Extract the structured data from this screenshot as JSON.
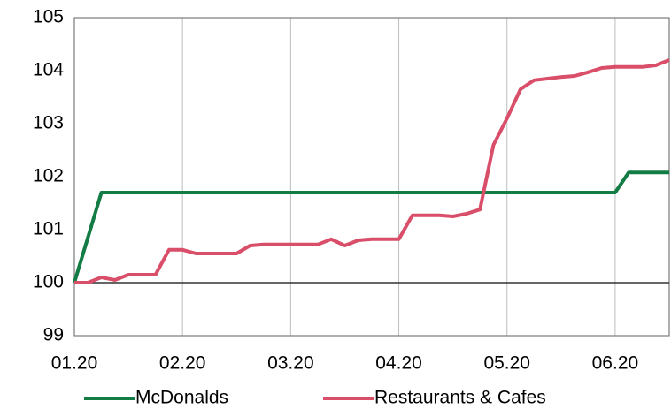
{
  "chart_data": {
    "type": "line",
    "categories": [
      "01.20",
      null,
      null,
      null,
      null,
      null,
      null,
      null,
      "02.20",
      null,
      null,
      null,
      null,
      null,
      null,
      null,
      "03.20",
      null,
      null,
      null,
      null,
      null,
      null,
      null,
      "04.20",
      null,
      null,
      null,
      null,
      null,
      null,
      null,
      "05.20",
      null,
      null,
      null,
      null,
      null,
      null,
      null,
      "06.20",
      null,
      null,
      null,
      null
    ],
    "series": [
      {
        "name": "McDonalds",
        "color": "#137c45",
        "values": [
          100,
          100.85,
          101.7,
          101.7,
          101.7,
          101.7,
          101.7,
          101.7,
          101.7,
          101.7,
          101.7,
          101.7,
          101.7,
          101.7,
          101.7,
          101.7,
          101.7,
          101.7,
          101.7,
          101.7,
          101.7,
          101.7,
          101.7,
          101.7,
          101.7,
          101.7,
          101.7,
          101.7,
          101.7,
          101.7,
          101.7,
          101.7,
          101.7,
          101.7,
          101.7,
          101.7,
          101.7,
          101.7,
          101.7,
          101.7,
          101.7,
          102.08,
          102.08,
          102.08,
          102.08
        ]
      },
      {
        "name": "Restaurants & Cafes",
        "color": "#d94e69",
        "values": [
          100,
          100,
          100.1,
          100.05,
          100.15,
          100.15,
          100.15,
          100.62,
          100.62,
          100.55,
          100.55,
          100.55,
          100.55,
          100.7,
          100.72,
          100.72,
          100.72,
          100.72,
          100.72,
          100.82,
          100.7,
          100.8,
          100.82,
          100.82,
          100.82,
          101.27,
          101.27,
          101.27,
          101.25,
          101.3,
          101.38,
          102.6,
          103.1,
          103.65,
          103.82,
          103.85,
          103.88,
          103.9,
          103.97,
          104.05,
          104.07,
          104.07,
          104.07,
          104.1,
          104.2
        ]
      }
    ],
    "ylim": [
      99,
      105
    ],
    "yticks": [
      99,
      100,
      101,
      102,
      103,
      104,
      105
    ],
    "baseline": 100,
    "grid": "x",
    "legend": "bottom"
  }
}
